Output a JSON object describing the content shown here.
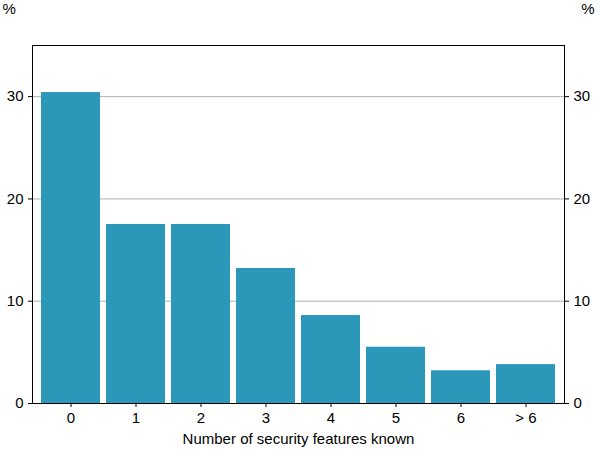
{
  "chart_data": {
    "type": "bar",
    "x_label": "Number of security features known",
    "y_label": "%",
    "categories": [
      "0",
      "1",
      "2",
      "3",
      "4",
      "5",
      "6",
      "> 6"
    ],
    "values": [
      30.4,
      17.5,
      17.5,
      13.2,
      8.6,
      5.5,
      3.2,
      3.8
    ],
    "color": "#2b97b9",
    "ylim": [
      0,
      35
    ],
    "yticks": [
      0,
      10,
      20,
      30
    ],
    "grid": true
  }
}
